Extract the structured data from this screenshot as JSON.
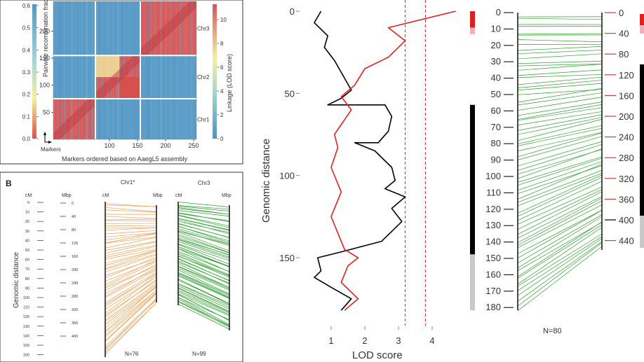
{
  "panel_a": {
    "left_axis_label": "Pairwise recombination fraction",
    "right_axis_label": "Linkage (LOD score)",
    "x_axis_label": "Markers ordered based on AaegL5 assembly",
    "markers_label": "Markers",
    "chrom_labels": [
      "Chr3",
      "Chr2",
      "Chr1"
    ],
    "left_scale_ticks": [
      "0.6",
      "0.5",
      "0.4",
      "0.3",
      "0.2",
      "0.1",
      "0.0"
    ],
    "right_scale_ticks": [
      "10",
      "8",
      "6",
      "4",
      "2",
      "0"
    ],
    "y_ticks": [
      "200",
      "150",
      "100",
      "50"
    ],
    "x_ticks": [
      "100",
      "150",
      "200",
      "250"
    ]
  },
  "panel_b": {
    "panel_letter": "B",
    "y_axis_label": "Genomic distance",
    "col_cm": "cM",
    "col_mbp": "Mbp",
    "cm_ticks": [
      "0",
      "10",
      "20",
      "30",
      "40",
      "50",
      "60",
      "70",
      "80",
      "90",
      "100",
      "110",
      "120",
      "130",
      "140",
      "150",
      "160"
    ],
    "mbp_ticks": [
      "0",
      "40",
      "80",
      "120",
      "160",
      "200",
      "240",
      "280",
      "320",
      "360",
      "400"
    ],
    "chr1_title": "Chr1*",
    "chr3_title": "Chr3",
    "chr1_cm_label": "cM",
    "chr1_mbp_label": "Mbp",
    "chr3_cm_label": "cM",
    "chr3_mbp_label": "Mbp",
    "chr1_n": "N=76",
    "chr3_n": "N=99",
    "colors": {
      "chr1": "#f0a050",
      "chr3": "#2ca02c"
    }
  },
  "panel_c": {
    "y_axis_label": "Genomic distance",
    "x_axis_label": "LOD score",
    "y_ticks": [
      "0",
      "50",
      "100",
      "150"
    ],
    "x_ticks": [
      "1",
      "2",
      "3",
      "4"
    ]
  },
  "panel_d": {
    "cm_ticks": [
      "0",
      "10",
      "20",
      "30",
      "40",
      "50",
      "60",
      "70",
      "80",
      "90",
      "100",
      "110",
      "120",
      "130",
      "140",
      "150",
      "160",
      "170",
      "180"
    ],
    "mbp_ticks": [
      "0",
      "40",
      "80",
      "120",
      "160",
      "200",
      "240",
      "280",
      "320",
      "360",
      "400",
      "440"
    ],
    "n_label": "N=80",
    "colors": {
      "lines": "#2ca02c"
    }
  },
  "chart_data": [
    {
      "type": "heatmap",
      "x_range": [
        0,
        255
      ],
      "y_range": [
        0,
        255
      ],
      "blocks": [
        {
          "name": "Chr1",
          "start": 0,
          "end": 75
        },
        {
          "name": "Chr2",
          "start": 75,
          "end": 155
        },
        {
          "name": "Chr3",
          "start": 155,
          "end": 255
        }
      ],
      "colorscale_left": {
        "label": "Pairwise recombination fraction",
        "range": [
          0.0,
          0.6
        ]
      },
      "colorscale_right": {
        "label": "Linkage (LOD score)",
        "range": [
          0,
          12
        ]
      }
    },
    {
      "type": "line",
      "xlabel": "LOD score",
      "ylabel": "Genomic distance",
      "xlim": [
        0.2,
        4.8
      ],
      "ylim": [
        190,
        -5
      ],
      "thresholds": [
        {
          "value": 3.2,
          "color": "#555555"
        },
        {
          "value": 3.8,
          "color": "#e02020"
        }
      ],
      "series": [
        {
          "color": "#000000",
          "points": [
            [
              0.7,
              0
            ],
            [
              0.5,
              7
            ],
            [
              0.9,
              15
            ],
            [
              0.8,
              22
            ],
            [
              1.1,
              30
            ],
            [
              1.6,
              48
            ],
            [
              1.3,
              53
            ],
            [
              0.9,
              57
            ],
            [
              2.6,
              57
            ],
            [
              2.8,
              64
            ],
            [
              2.7,
              73
            ],
            [
              2.4,
              80
            ],
            [
              1.7,
              80
            ],
            [
              2.3,
              85
            ],
            [
              2.8,
              95
            ],
            [
              2.9,
              103
            ],
            [
              2.6,
              108
            ],
            [
              3.2,
              113
            ],
            [
              2.8,
              120
            ],
            [
              3.1,
              128
            ],
            [
              2.5,
              140
            ],
            [
              1.2,
              147
            ],
            [
              0.6,
              150
            ],
            [
              0.7,
              158
            ],
            [
              0.5,
              162
            ],
            [
              1.0,
              168
            ],
            [
              1.6,
              175
            ],
            [
              1.3,
              182
            ]
          ]
        },
        {
          "color": "#e02020",
          "points": [
            [
              4.7,
              0
            ],
            [
              2.7,
              10
            ],
            [
              3.2,
              18
            ],
            [
              2.7,
              28
            ],
            [
              2.0,
              35
            ],
            [
              1.7,
              45
            ],
            [
              1.3,
              52
            ],
            [
              1.6,
              60
            ],
            [
              1.1,
              75
            ],
            [
              1.2,
              83
            ],
            [
              1.0,
              95
            ],
            [
              1.3,
              110
            ],
            [
              1.0,
              125
            ],
            [
              1.4,
              145
            ],
            [
              1.8,
              150
            ],
            [
              1.5,
              155
            ],
            [
              1.3,
              165
            ],
            [
              1.8,
              175
            ],
            [
              1.4,
              182
            ]
          ]
        }
      ],
      "tracks": [
        {
          "color": "#e02020",
          "from": 0,
          "to": 10
        },
        {
          "color": "#f0b0b8",
          "from": 10,
          "to": 14
        },
        {
          "color": "#000000",
          "from": 57,
          "to": 148
        },
        {
          "color": "#c8c8c8",
          "from": 148,
          "to": 182
        }
      ]
    }
  ]
}
